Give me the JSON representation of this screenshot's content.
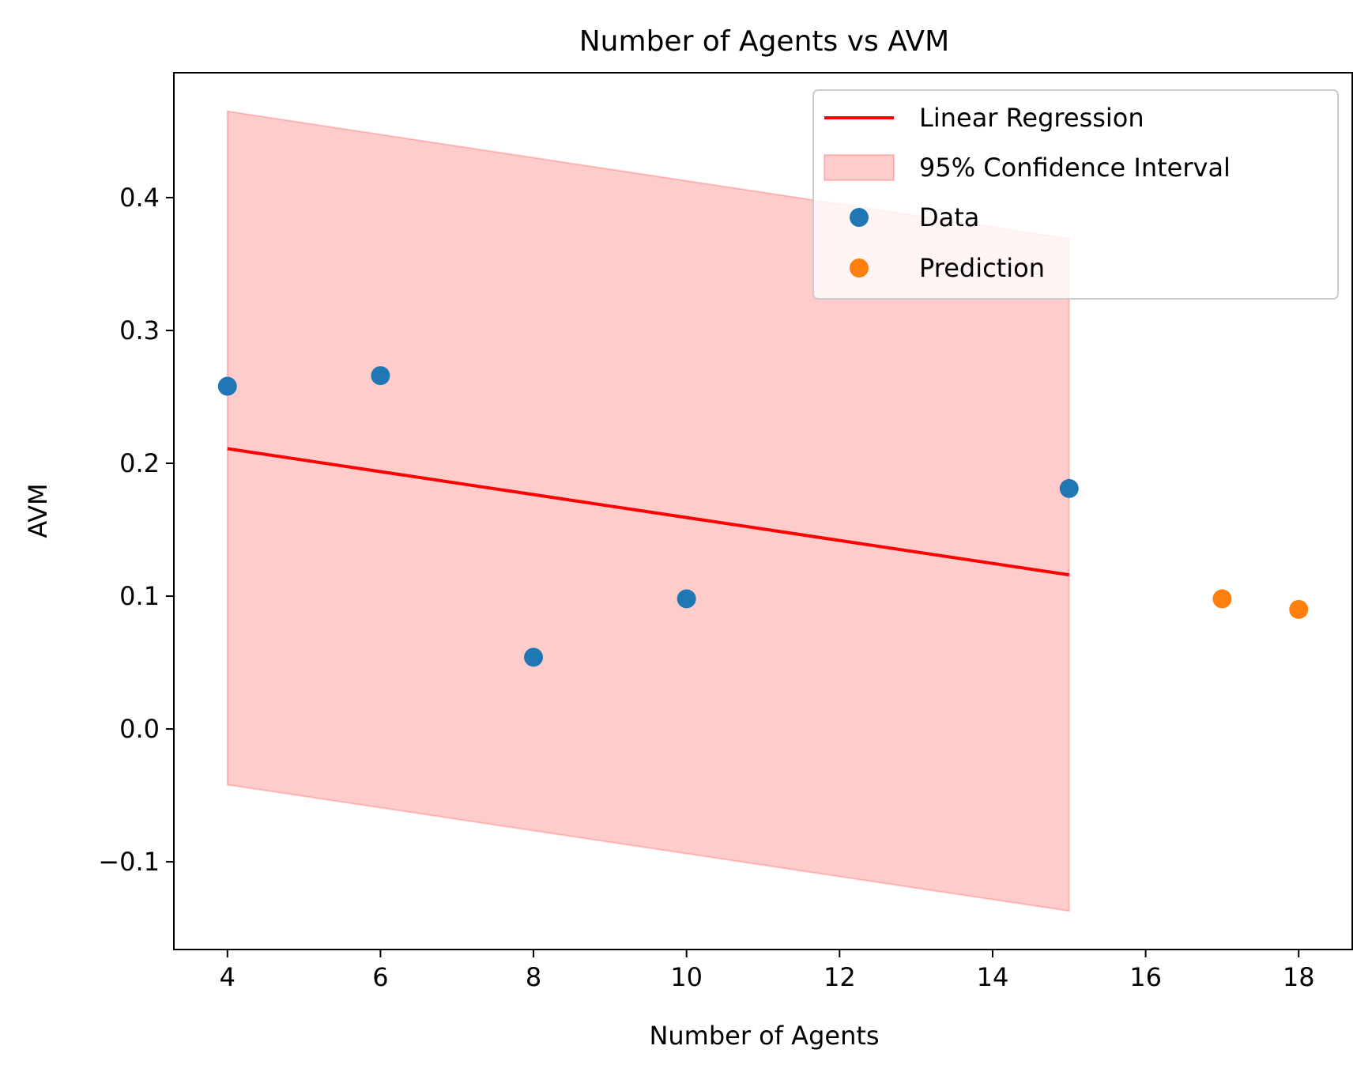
{
  "chart_data": {
    "type": "scatter",
    "title": "Number of Agents vs AVM",
    "xlabel": "Number of Agents",
    "ylabel": "AVM",
    "xlim": [
      3.3,
      18.7
    ],
    "ylim": [
      -0.166,
      0.494
    ],
    "xticks": [
      4,
      6,
      8,
      10,
      12,
      14,
      16,
      18
    ],
    "xtick_labels": [
      "4",
      "6",
      "8",
      "10",
      "12",
      "14",
      "16",
      "18"
    ],
    "yticks": [
      -0.1,
      0.0,
      0.1,
      0.2,
      0.3,
      0.4
    ],
    "ytick_labels": [
      "−0.1",
      "0.0",
      "0.1",
      "0.2",
      "0.3",
      "0.4"
    ],
    "grid": false,
    "legend_position": "top-right",
    "series": [
      {
        "name": "Linear Regression",
        "kind": "line",
        "color": "#ff0000",
        "x": [
          4,
          15
        ],
        "y": [
          0.211,
          0.116
        ]
      },
      {
        "name": "95% Confidence Interval",
        "kind": "band",
        "color": "#ff0000",
        "x": [
          4,
          15
        ],
        "upper": [
          0.465,
          0.369
        ],
        "lower": [
          -0.042,
          -0.137
        ]
      },
      {
        "name": "Data",
        "kind": "scatter",
        "color": "#1f77b4",
        "x": [
          4,
          6,
          8,
          10,
          15
        ],
        "y": [
          0.258,
          0.266,
          0.054,
          0.098,
          0.181
        ]
      },
      {
        "name": "Prediction",
        "kind": "scatter",
        "color": "#ff7f0e",
        "x": [
          17,
          18
        ],
        "y": [
          0.098,
          0.09
        ]
      }
    ]
  }
}
